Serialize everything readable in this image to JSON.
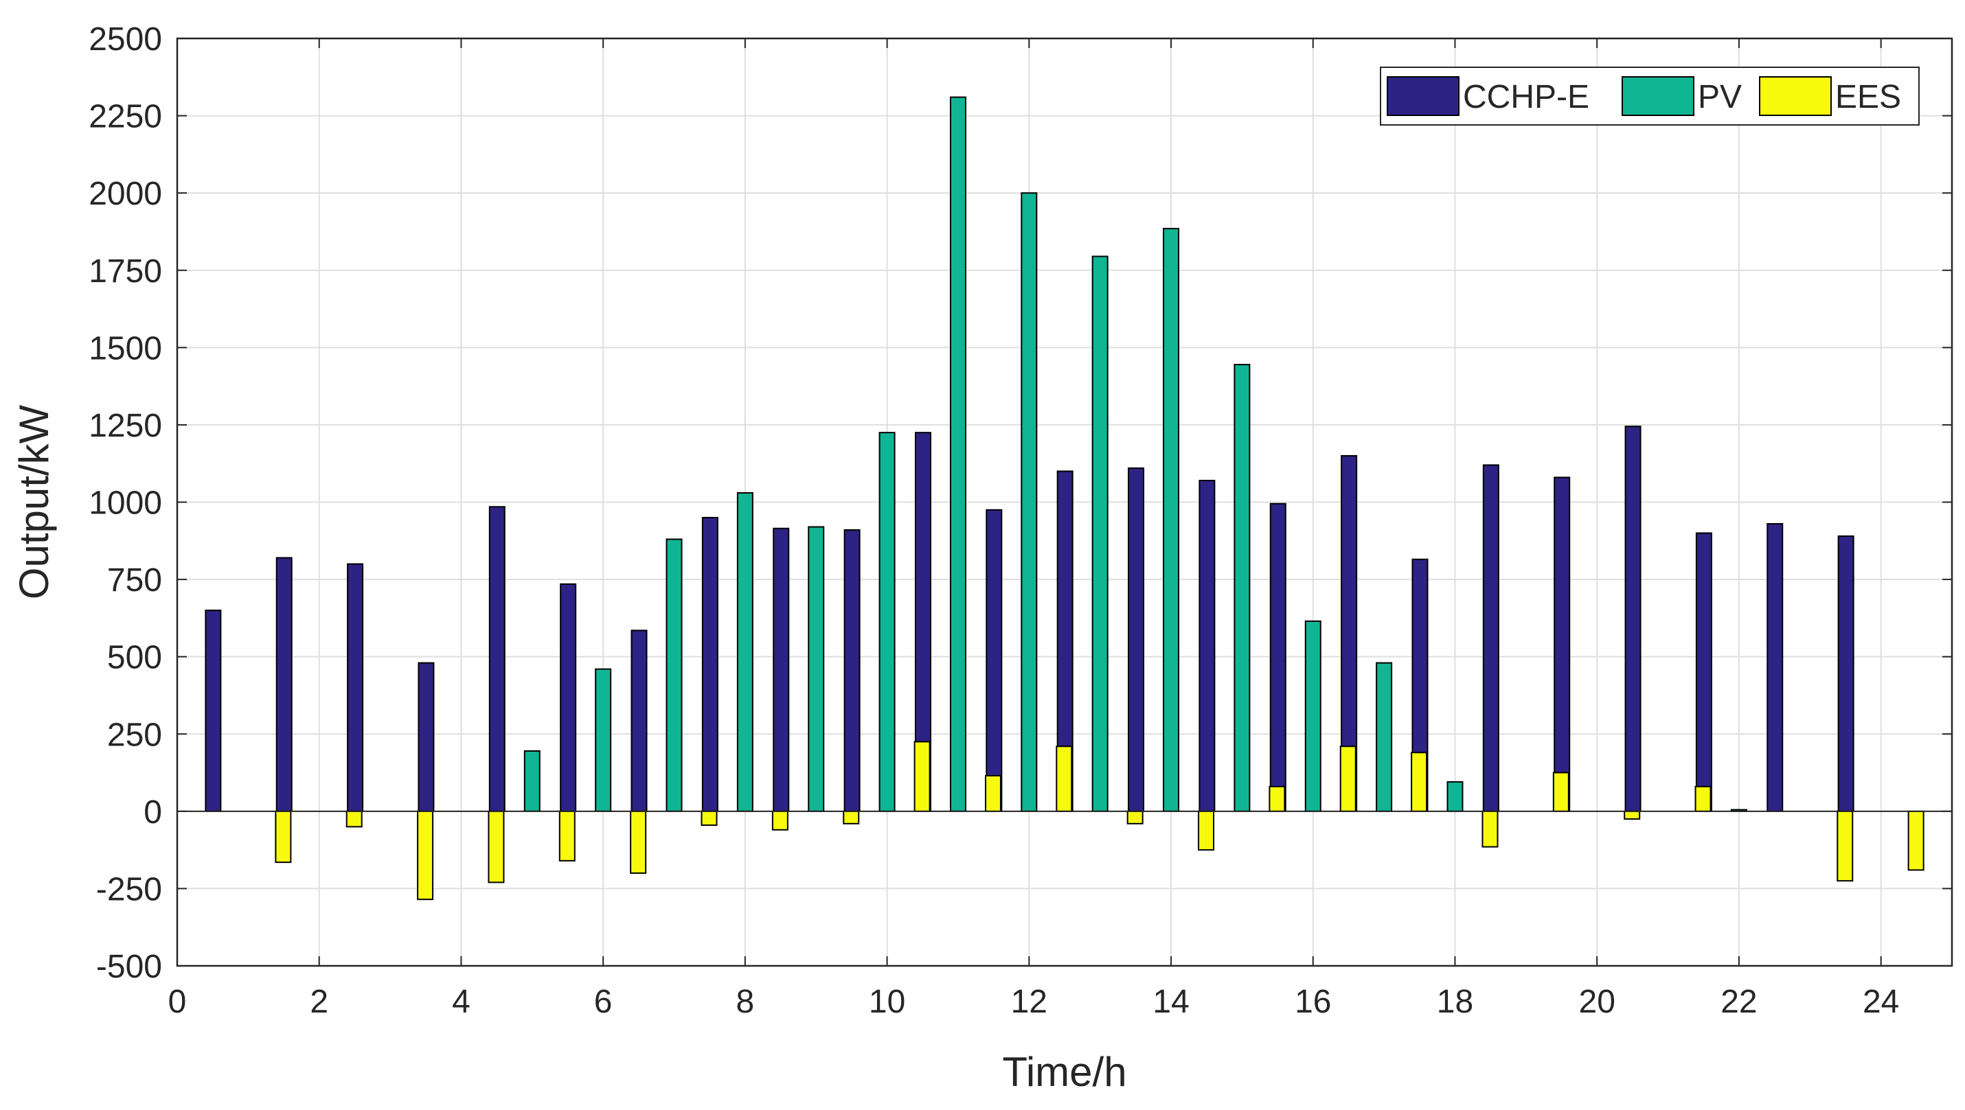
{
  "chart_data": {
    "type": "bar",
    "title": "",
    "xlabel": "Time/h",
    "ylabel": "Output/kW",
    "xlim": [
      0,
      25
    ],
    "ylim": [
      -500,
      2500
    ],
    "xticks": [
      0,
      2,
      4,
      6,
      8,
      10,
      12,
      14,
      16,
      18,
      20,
      22,
      24
    ],
    "yticks": [
      -500,
      -250,
      0,
      250,
      500,
      750,
      1000,
      1250,
      1500,
      1750,
      2000,
      2250,
      2500
    ],
    "grid": true,
    "legend_position": "top-right",
    "categories": [
      1,
      2,
      3,
      4,
      5,
      6,
      7,
      8,
      9,
      10,
      11,
      12,
      13,
      14,
      15,
      16,
      17,
      18,
      19,
      20,
      21,
      22,
      23,
      24
    ],
    "series": [
      {
        "name": "CCHP-E",
        "color": "#2D2384",
        "values": [
          650,
          820,
          800,
          480,
          985,
          735,
          585,
          950,
          915,
          910,
          1225,
          975,
          1100,
          1110,
          1070,
          995,
          1150,
          815,
          1120,
          1080,
          1245,
          900,
          930,
          890
        ]
      },
      {
        "name": "PV",
        "color": "#10B593",
        "values": [
          0,
          0,
          0,
          0,
          195,
          460,
          880,
          1030,
          920,
          1225,
          2310,
          2000,
          1795,
          1885,
          1445,
          615,
          480,
          95,
          0,
          0,
          0,
          5,
          0,
          0
        ]
      },
      {
        "name": "EES",
        "color": "#F8FA0E",
        "values": [
          -165,
          -50,
          -285,
          -230,
          -160,
          -200,
          -45,
          -60,
          -40,
          225,
          115,
          210,
          -40,
          -125,
          80,
          210,
          190,
          -115,
          125,
          -25,
          80,
          0,
          -225,
          -190
        ]
      }
    ]
  }
}
